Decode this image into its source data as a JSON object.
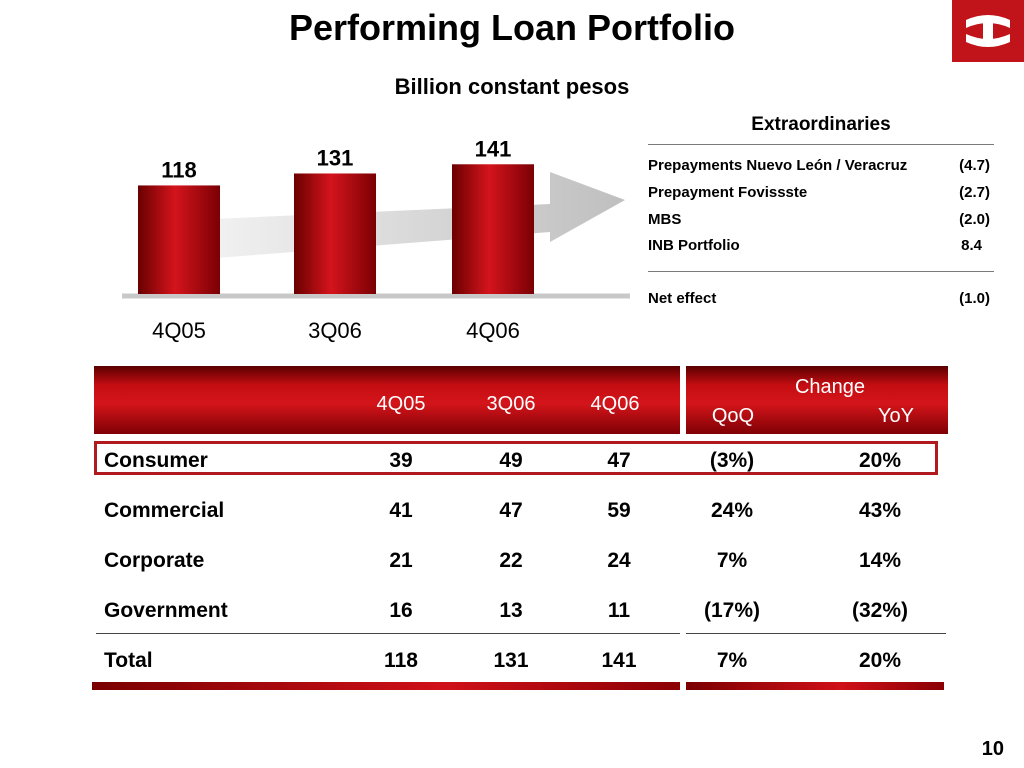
{
  "title": "Performing Loan Portfolio",
  "subtitle": "Billion constant pesos",
  "page_number": "10",
  "chart_data": {
    "type": "bar",
    "categories": [
      "4Q05",
      "3Q06",
      "4Q06"
    ],
    "values": [
      118,
      131,
      141
    ],
    "data_labels": [
      "118",
      "131",
      "141"
    ],
    "title": "",
    "xlabel": "",
    "ylabel": "",
    "ylim": [
      0,
      150
    ],
    "grid": false,
    "bar_color": "#c8101a"
  },
  "extraordinaries": {
    "title": "Extraordinaries",
    "items": [
      {
        "label": "Prepayments Nuevo León / Veracruz",
        "value": "(4.7)"
      },
      {
        "label": "Prepayment Fovissste",
        "value": "(2.7)"
      },
      {
        "label": "MBS",
        "value": "(2.0)"
      },
      {
        "label": "INB Portfolio",
        "value": "8.4"
      }
    ],
    "net": {
      "label": "Net effect",
      "value": "(1.0)"
    }
  },
  "table": {
    "headers": {
      "q1": "4Q05",
      "q2": "3Q06",
      "q3": "4Q06",
      "change": "Change",
      "qoq": "QoQ",
      "yoy": "YoY"
    },
    "rows": [
      {
        "label": "Consumer",
        "q1": "39",
        "q2": "49",
        "q3": "47",
        "qoq": "(3%)",
        "yoy": "20%"
      },
      {
        "label": "Commercial",
        "q1": "41",
        "q2": "47",
        "q3": "59",
        "qoq": "24%",
        "yoy": "43%"
      },
      {
        "label": "Corporate",
        "q1": "21",
        "q2": "22",
        "q3": "24",
        "qoq": "7%",
        "yoy": "14%"
      },
      {
        "label": "Government",
        "q1": "16",
        "q2": "13",
        "q3": "11",
        "qoq": "(17%)",
        "yoy": "(32%)"
      },
      {
        "label": "Total",
        "q1": "118",
        "q2": "131",
        "q3": "141",
        "qoq": "7%",
        "yoy": "20%"
      }
    ],
    "highlighted_row": "Consumer"
  }
}
